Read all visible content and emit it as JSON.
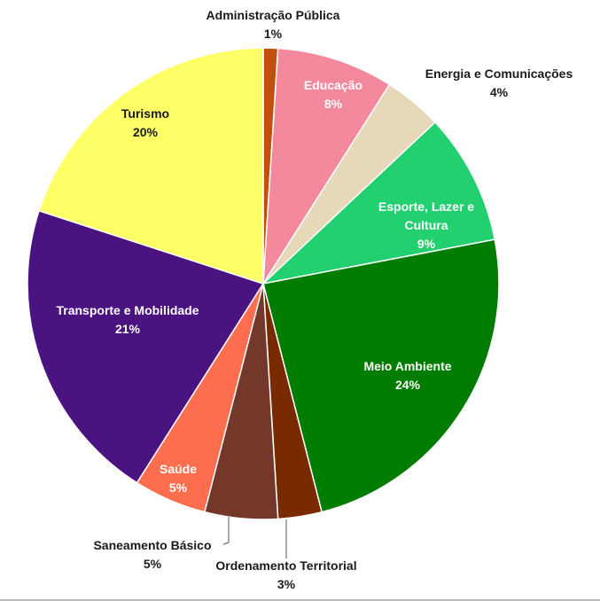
{
  "chart_data": {
    "type": "pie",
    "title": "",
    "slices": [
      {
        "label": "Administração Pública",
        "value": 1,
        "percent_label": "1%",
        "color": "#C0500F"
      },
      {
        "label": "Educação",
        "value": 8,
        "percent_label": "8%",
        "color": "#F4889C"
      },
      {
        "label": "Energia e Comunicações",
        "value": 4,
        "percent_label": "4%",
        "color": "#E8D8BA"
      },
      {
        "label": "Esporte, Lazer e Cultura",
        "value": 9,
        "percent_label": "9%",
        "color": "#23D070"
      },
      {
        "label": "Meio Ambiente",
        "value": 24,
        "percent_label": "24%",
        "color": "#007C00"
      },
      {
        "label": "Ordenamento Territorial",
        "value": 3,
        "percent_label": "3%",
        "color": "#7A2A00"
      },
      {
        "label": "Saneamento Básico",
        "value": 5,
        "percent_label": "5%",
        "color": "#74382A"
      },
      {
        "label": "Saúde",
        "value": 5,
        "percent_label": "5%",
        "color": "#FF6F4F"
      },
      {
        "label": "Transporte e Mobilidade",
        "value": 21,
        "percent_label": "21%",
        "color": "#4B1380"
      },
      {
        "label": "Turismo",
        "value": 20,
        "percent_label": "20%",
        "color": "#FFFF66"
      }
    ],
    "start_angle_deg": 0,
    "direction": "clockwise",
    "legend": "none"
  }
}
